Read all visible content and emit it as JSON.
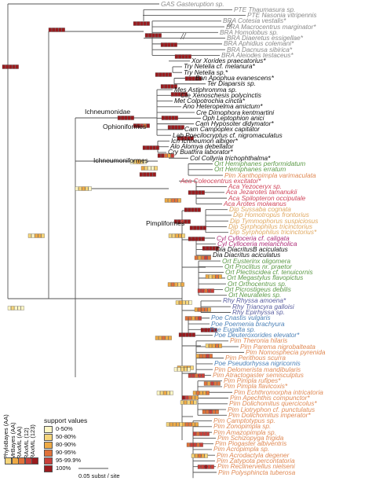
{
  "colors": {
    "PTE": "#8a8a8a",
    "BRA": "#8a8a8a",
    "GAS": "#8a8a8a",
    "Xor": "#111111",
    "Try": "#111111",
    "Ban": "#111111",
    "Ter": "#111111",
    "Mes": "#111111",
    "Cte": "#111111",
    "Met": "#111111",
    "Ano": "#111111",
    "Cre": "#111111",
    "Oph": "#111111",
    "Cam": "#111111",
    "Lab": "#111111",
    "Ich": "#111111",
    "Alo": "#111111",
    "Cry": "#111111",
    "Col": "#111111",
    "Dia": "#111111",
    "Ort": "#5c9a47",
    "Pim": "#e08a55",
    "Aca": "#d0455a",
    "Dip": "#e0a860",
    "Cyl": "#b0307a",
    "Rhy": "#5a5fa0",
    "Poe": "#4d82b8",
    "support": [
      "#fff6c4",
      "#f6d57a",
      "#eeaa45",
      "#e0723a",
      "#c8403a",
      "#9b1b1e"
    ],
    "branch": "#555555"
  },
  "taxa": [
    {
      "name": "GAS Gasteruption sp.",
      "group": "GAS"
    },
    {
      "name": "PTE Thaumasura sp.",
      "group": "PTE"
    },
    {
      "name": "PTE Nasonia vitripennis",
      "group": "PTE"
    },
    {
      "name": "BRA Cotesia vestalis*",
      "group": "BRA"
    },
    {
      "name": "BRA Macrocentrus marginator*",
      "group": "BRA"
    },
    {
      "name": "BRA Homolobus sp.",
      "group": "BRA"
    },
    {
      "name": "BRA Diaeretus essigellae*",
      "group": "BRA"
    },
    {
      "name": "BRA Aphidius colemani*",
      "group": "BRA"
    },
    {
      "name": "BRA Dacnusa sibirica*",
      "group": "BRA"
    },
    {
      "name": "BRA Aleiodes testaceus*",
      "group": "BRA"
    },
    {
      "name": "Xor Xorides praecatorius*",
      "group": "Xor"
    },
    {
      "name": "Try Netelia cf. melanura*",
      "group": "Try"
    },
    {
      "name": "Try Netelia sp.*",
      "group": "Try"
    },
    {
      "name": "Ban Apophua evanescens*",
      "group": "Ban"
    },
    {
      "name": "Ter Diaparsis sp.",
      "group": "Ter"
    },
    {
      "name": "Mes Astiphromma sp.",
      "group": "Mes"
    },
    {
      "name": "Cte Xenoschesis polycinctis",
      "group": "Cte"
    },
    {
      "name": "Met Colpotrochia cincta*",
      "group": "Met"
    },
    {
      "name": "Ano Heteropelma amictum*",
      "group": "Ano"
    },
    {
      "name": "Cre Dimophora kentmartini",
      "group": "Cre"
    },
    {
      "name": "Oph Leptophion anici",
      "group": "Oph"
    },
    {
      "name": "Cam Hyposoter didymator*",
      "group": "Cam"
    },
    {
      "name": "Cam Campoplex capitator",
      "group": "Cam"
    },
    {
      "name": "Lab Poecilocryptus cf. nigromaculatus",
      "group": "Lab"
    },
    {
      "name": "Ich Ichneumon albiger*",
      "group": "Ich"
    },
    {
      "name": "Alo Alomya debellator",
      "group": "Alo"
    },
    {
      "name": "Cry Buathra laborator*",
      "group": "Cry"
    },
    {
      "name": "Col Collyria trichophthalma*",
      "group": "Col"
    },
    {
      "name": "Ort Hemiphanes performidatum",
      "group": "Ort"
    },
    {
      "name": "Ort Hemiphanes erratum",
      "group": "Ort"
    },
    {
      "name": "Pim Xanthopimpla varimaculata",
      "group": "Pim"
    },
    {
      "name": "Aca Coleocentrus excitator*",
      "group": "Aca"
    },
    {
      "name": "Aca Yezoceryx sp.",
      "group": "Aca"
    },
    {
      "name": "Aca Jezarotes tamanukii",
      "group": "Aca"
    },
    {
      "name": "Aca Spilopteron occiputale",
      "group": "Aca"
    },
    {
      "name": "Aca Arotes moiwanus",
      "group": "Aca"
    },
    {
      "name": "Dip Sussaba cognata",
      "group": "Dip"
    },
    {
      "name": "Dip Homotropus frontorius",
      "group": "Dip"
    },
    {
      "name": "Dip Tymmophorus suspiciosus",
      "group": "Dip"
    },
    {
      "name": "Dip Syrphophilus tricinctorius",
      "group": "Dip"
    },
    {
      "name": "Dip Syrphophilus tricinctorius*",
      "group": "Dip"
    },
    {
      "name": "Cyl Cylloceria cf. caligata",
      "group": "Cyl"
    },
    {
      "name": "Cyl Cylloceria melancholica",
      "group": "Cyl"
    },
    {
      "name": "Dia DiacritusB aciculatus",
      "group": "Dia"
    },
    {
      "name": "Dia Diacritus aciculatus",
      "group": "Dia"
    },
    {
      "name": "Ort Eusterinx oligomera",
      "group": "Ort"
    },
    {
      "name": "Ort Proclitus nr. praetor",
      "group": "Ort"
    },
    {
      "name": "Ort Plectiscidea cf. tenuicornis",
      "group": "Ort"
    },
    {
      "name": "Ort Megastylus flavopictus",
      "group": "Ort"
    },
    {
      "name": "Ort Orthocentrus sp.",
      "group": "Ort"
    },
    {
      "name": "Ort Picrostigeus debilis",
      "group": "Ort"
    },
    {
      "name": "Ort Neurateles sp.",
      "group": "Ort"
    },
    {
      "name": "Rhy Rhyssa amoena*",
      "group": "Rhy"
    },
    {
      "name": "Rhy Triancyra galloisi",
      "group": "Rhy"
    },
    {
      "name": "Rhy Epirhyssa sp.",
      "group": "Rhy"
    },
    {
      "name": "Poe Cnastis vulgaris",
      "group": "Poe"
    },
    {
      "name": "Poe Poemenia brachyura",
      "group": "Poe"
    },
    {
      "name": "Poe Eugalta sp.",
      "group": "Poe"
    },
    {
      "name": "Poe Deuteroxorides elevator*",
      "group": "Poe"
    },
    {
      "name": "Pim Theronia hilaris",
      "group": "Pim"
    },
    {
      "name": "Pim Parema nigrobalteata",
      "group": "Pim"
    },
    {
      "name": "Pim Nomosphecia pyrenida",
      "group": "Pim"
    },
    {
      "name": "Pim Perithous scurra",
      "group": "Pim"
    },
    {
      "name": "Poe Pseudorhyssa nigricornis",
      "group": "Poe"
    },
    {
      "name": "Pim Delomerista mandibularis",
      "group": "Pim"
    },
    {
      "name": "Pim Atractogaster semisculptus",
      "group": "Pim"
    },
    {
      "name": "Pim Pimpla rufipes*",
      "group": "Pim"
    },
    {
      "name": "Pim Pimpla flavicoxis*",
      "group": "Pim"
    },
    {
      "name": "Pim Echthromorpha intricatoria",
      "group": "Pim"
    },
    {
      "name": "Pim Apechthis compunctor*",
      "group": "Pim"
    },
    {
      "name": "Pim Dolichomitus quercicolus*",
      "group": "Pim"
    },
    {
      "name": "Pim Liotryphon cf. punctulatus",
      "group": "Pim"
    },
    {
      "name": "Pim Dolichomitus imperator*",
      "group": "Pim"
    },
    {
      "name": "Pim Camptotypus sp.",
      "group": "Pim"
    },
    {
      "name": "Pim Zonopimpla sp.",
      "group": "Pim"
    },
    {
      "name": "Pim Amazopimpla sp.",
      "group": "Pim"
    },
    {
      "name": "Pim Schizopyga frigida",
      "group": "Pim"
    },
    {
      "name": "Pim Piogaster albiventris",
      "group": "Pim"
    },
    {
      "name": "Pim Acropimpla sp.",
      "group": "Pim"
    },
    {
      "name": "Pim Acrodactyla degener",
      "group": "Pim"
    },
    {
      "name": "Pim Zatypota percontatoria",
      "group": "Pim"
    },
    {
      "name": "Pim Reclinervellus nielseni",
      "group": "Pim"
    },
    {
      "name": "Pim Polysphincta tuberosa",
      "group": "Pim"
    }
  ],
  "clade_labels": [
    "Ichneumonidae",
    "Ophioniformes",
    "Ichneumoniformes",
    "Pimpliformes"
  ],
  "legend": {
    "title": "support values",
    "bins": [
      "0-50%",
      "50-80%",
      "80-90%",
      "90-95%",
      "95-99.9%",
      "100%"
    ],
    "methods": [
      "PhyloBayes (AA)",
      "MrBayes (AA)",
      "RAxML (AA)",
      "RAxML (12)",
      "RAxML (123)"
    ]
  },
  "scale_bar": {
    "label": "0.05 subst / site"
  }
}
